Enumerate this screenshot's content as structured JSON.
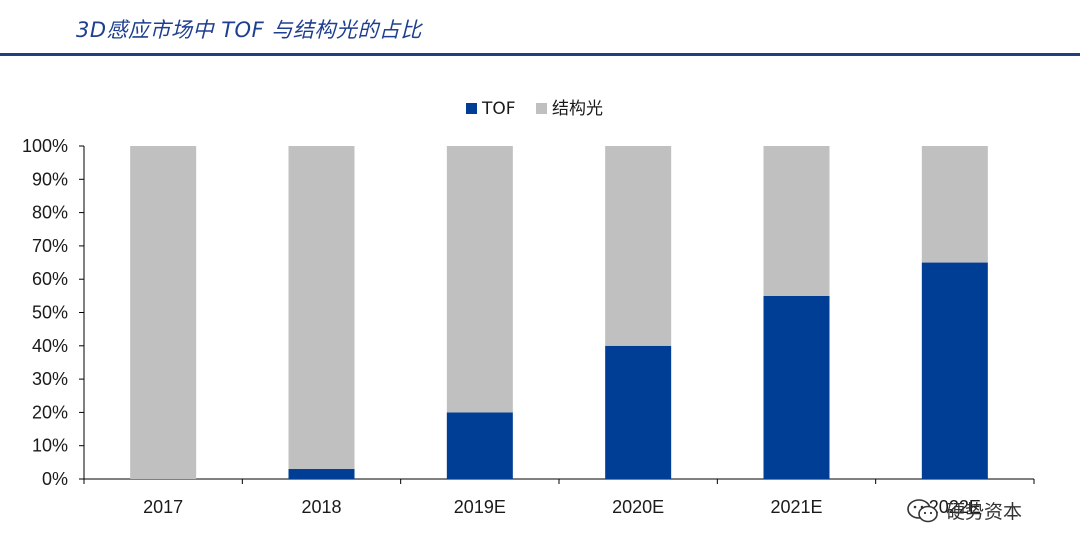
{
  "page": {
    "title": "3D感应市场中 TOF 与结构光的占比"
  },
  "watermark": {
    "text": "硬势资本",
    "icon": "wechat-icon"
  },
  "colors": {
    "tof": "#003e96",
    "structured_light": "#c0c0c0",
    "title": "#1e3f8f",
    "rule": "#1f3f7f"
  },
  "chart_data": {
    "type": "bar",
    "stacked": true,
    "title": "",
    "xlabel": "",
    "ylabel": "",
    "categories": [
      "2017",
      "2018",
      "2019E",
      "2020E",
      "2021E",
      "2022E"
    ],
    "series": [
      {
        "name": "TOF",
        "color": "#003e96",
        "values": [
          0,
          3,
          20,
          40,
          55,
          65
        ]
      },
      {
        "name": "结构光",
        "color": "#c0c0c0",
        "values": [
          100,
          97,
          80,
          60,
          45,
          35
        ]
      }
    ],
    "ylim": [
      0,
      100
    ],
    "yticks": [
      "0%",
      "10%",
      "20%",
      "30%",
      "40%",
      "50%",
      "60%",
      "70%",
      "80%",
      "90%",
      "100%"
    ],
    "legend_position": "top-center",
    "grid": false
  }
}
